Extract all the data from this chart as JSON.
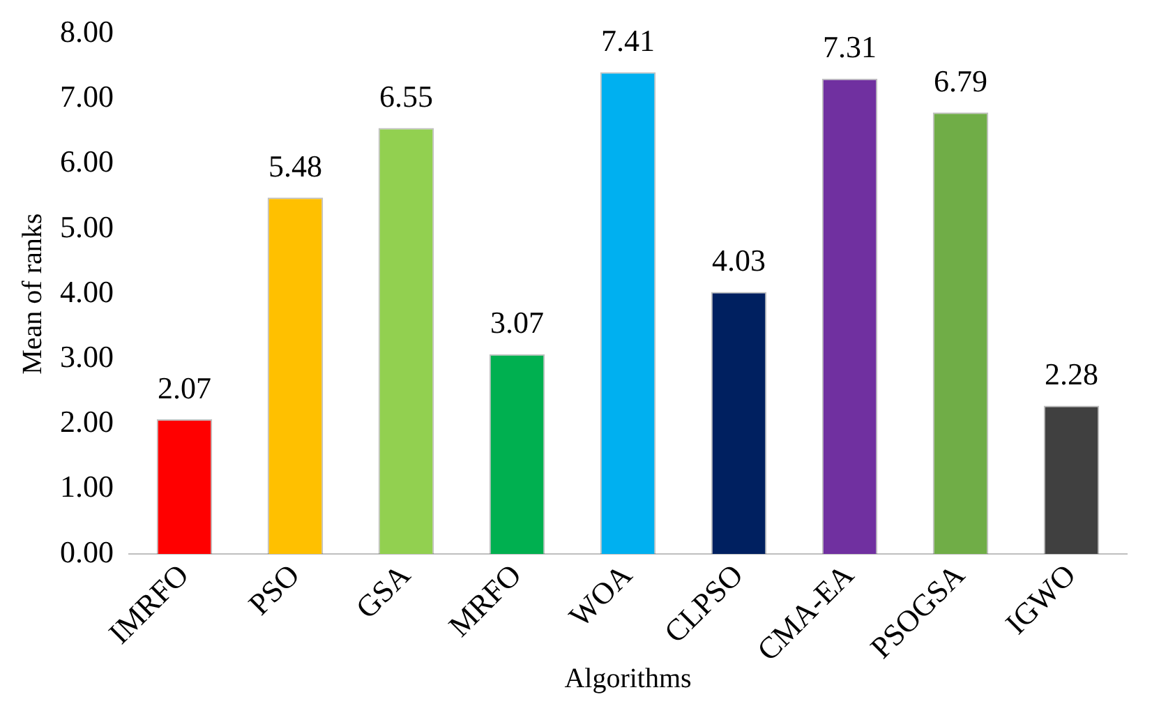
{
  "chart_data": {
    "type": "bar",
    "xlabel": "Algorithms",
    "ylabel": "Mean of ranks",
    "categories": [
      "IMRFO",
      "PSO",
      "GSA",
      "MRFO",
      "WOA",
      "CLPSO",
      "CMA-EA",
      "PSOGSA",
      "IGWO"
    ],
    "values": [
      2.07,
      5.48,
      6.55,
      3.07,
      7.41,
      4.03,
      7.31,
      6.79,
      2.28
    ],
    "colors": [
      "#ff0000",
      "#ffc000",
      "#92d050",
      "#00b050",
      "#00b0f0",
      "#002060",
      "#7030a0",
      "#70ad47",
      "#404040"
    ],
    "ylim": [
      0,
      8
    ],
    "yticks": [
      {
        "value": 0,
        "label": "0.00"
      },
      {
        "value": 1,
        "label": "1.00"
      },
      {
        "value": 2,
        "label": "2.00"
      },
      {
        "value": 3,
        "label": "3.00"
      },
      {
        "value": 4,
        "label": "4.00"
      },
      {
        "value": 5,
        "label": "5.00"
      },
      {
        "value": 6,
        "label": "6.00"
      },
      {
        "value": 7,
        "label": "7.00"
      },
      {
        "value": 8,
        "label": "8.00"
      }
    ],
    "data_labels": true,
    "grid": false,
    "legend": false
  }
}
